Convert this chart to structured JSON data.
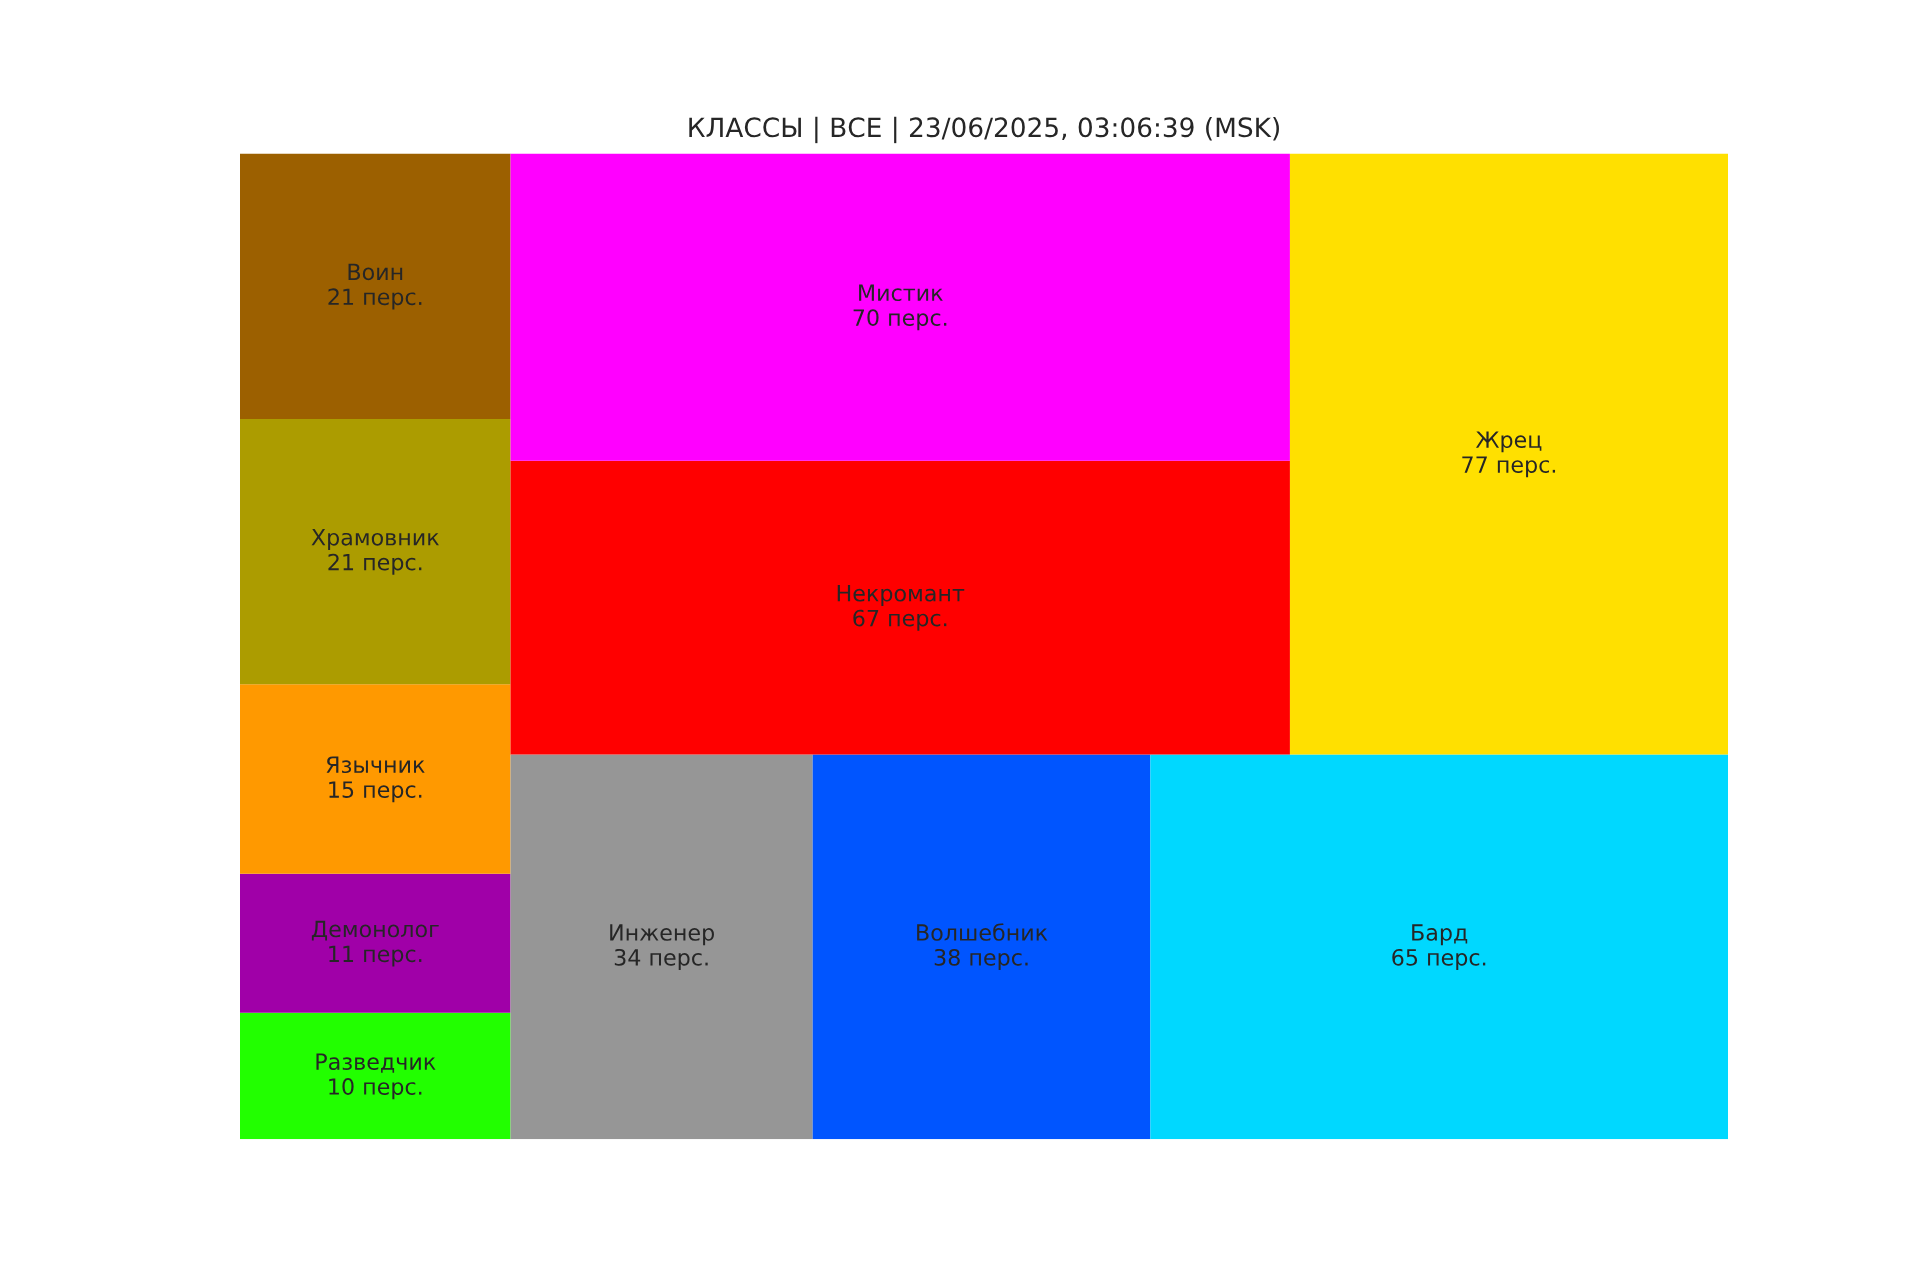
{
  "chart_data": {
    "type": "other",
    "title": "КЛАССЫ | ВСЕ | 23/06/2025, 03:06:39 (MSK)",
    "categories": [
      "Разведчик",
      "Демонолог",
      "Язычник",
      "Храмовник",
      "Воин",
      "Инженер",
      "Волшебник",
      "Бард",
      "Некромант",
      "Мистик",
      "Жрец"
    ],
    "values": [
      10,
      11,
      15,
      21,
      21,
      34,
      38,
      65,
      67,
      70,
      77
    ],
    "value_labels": [
      "10 перс.",
      "11 перс.",
      "15 перс.",
      "21 перс.",
      "21 перс.",
      "34 перс.",
      "38 перс.",
      "65 перс.",
      "67 перс.",
      "70 перс.",
      "77 перс."
    ],
    "colors": [
      "#22ff00",
      "#a000a8",
      "#ff9900",
      "#ac9c00",
      "#9c6000",
      "#969696",
      "#0055ff",
      "#00d8ff",
      "#ff0000",
      "#ff00ff",
      "#ffe000"
    ]
  }
}
